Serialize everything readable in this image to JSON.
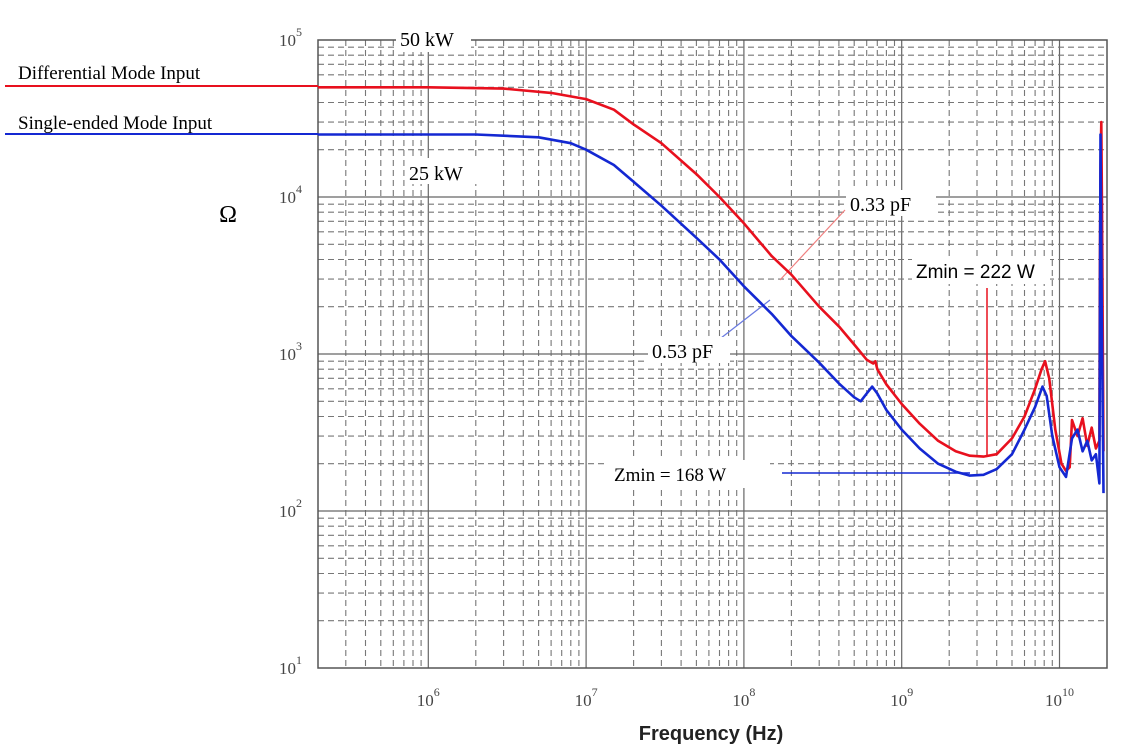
{
  "chart_data": {
    "type": "line",
    "x_scale": "log",
    "y_scale": "log",
    "xlim": [
      200000,
      20000000000
    ],
    "ylim": [
      10,
      100000
    ],
    "xlabel": "Frequency (Hz)",
    "ylabel": "Ω",
    "x_ticks": [
      {
        "value": 1000000,
        "base": "10",
        "exp": "6"
      },
      {
        "value": 10000000,
        "base": "10",
        "exp": "7"
      },
      {
        "value": 100000000,
        "base": "10",
        "exp": "8"
      },
      {
        "value": 1000000000,
        "base": "10",
        "exp": "9"
      },
      {
        "value": 10000000000,
        "base": "10",
        "exp": "10"
      }
    ],
    "y_ticks": [
      {
        "value": 10,
        "base": "10",
        "exp": "1"
      },
      {
        "value": 100,
        "base": "10",
        "exp": "2"
      },
      {
        "value": 1000,
        "base": "10",
        "exp": "3"
      },
      {
        "value": 10000,
        "base": "10",
        "exp": "4"
      },
      {
        "value": 100000,
        "base": "10",
        "exp": "5"
      }
    ],
    "grid": true,
    "series": [
      {
        "name": "Differential Mode Input",
        "color": "#e8101e",
        "points": [
          [
            200000,
            50000
          ],
          [
            1000000,
            50000
          ],
          [
            3000000,
            49000
          ],
          [
            6000000,
            46000
          ],
          [
            10000000,
            42000
          ],
          [
            15000000,
            36000
          ],
          [
            20000000,
            29000
          ],
          [
            30000000,
            22000
          ],
          [
            50000000,
            14000
          ],
          [
            70000000,
            10000
          ],
          [
            100000000,
            6800
          ],
          [
            150000000,
            4200
          ],
          [
            200000000,
            3200
          ],
          [
            300000000,
            2000
          ],
          [
            400000000,
            1500
          ],
          [
            500000000,
            1150
          ],
          [
            600000000,
            920
          ],
          [
            660000000,
            870
          ],
          [
            680000000,
            900
          ],
          [
            700000000,
            800
          ],
          [
            800000000,
            640
          ],
          [
            1000000000,
            480
          ],
          [
            1300000000,
            360
          ],
          [
            1700000000,
            280
          ],
          [
            2200000000,
            240
          ],
          [
            2700000000,
            225
          ],
          [
            3300000000,
            222
          ],
          [
            4000000000,
            230
          ],
          [
            5000000000,
            290
          ],
          [
            6000000000,
            400
          ],
          [
            7000000000,
            600
          ],
          [
            7700000000,
            800
          ],
          [
            8100000000,
            900
          ],
          [
            8600000000,
            700
          ],
          [
            9400000000,
            330
          ],
          [
            10300000000,
            200
          ],
          [
            11000000000,
            180
          ],
          [
            11600000000,
            190
          ],
          [
            12000000000,
            380
          ],
          [
            13000000000,
            300
          ],
          [
            14000000000,
            390
          ],
          [
            15000000000,
            260
          ],
          [
            16000000000,
            340
          ],
          [
            17000000000,
            250
          ],
          [
            17900000000,
            280
          ],
          [
            18000000000,
            3000
          ],
          [
            18200000000,
            15000
          ],
          [
            18400000000,
            30000
          ],
          [
            18600000000,
            8000
          ],
          [
            19000000000,
            240
          ]
        ]
      },
      {
        "name": "Single-ended Mode Input",
        "color": "#1428d2",
        "points": [
          [
            200000,
            25000
          ],
          [
            2000000,
            25000
          ],
          [
            5000000,
            24000
          ],
          [
            8000000,
            22000
          ],
          [
            10000000,
            20000
          ],
          [
            15000000,
            16000
          ],
          [
            20000000,
            12500
          ],
          [
            30000000,
            8800
          ],
          [
            50000000,
            5500
          ],
          [
            70000000,
            4000
          ],
          [
            100000000,
            2700
          ],
          [
            150000000,
            1800
          ],
          [
            200000000,
            1300
          ],
          [
            300000000,
            880
          ],
          [
            400000000,
            650
          ],
          [
            500000000,
            530
          ],
          [
            550000000,
            500
          ],
          [
            600000000,
            560
          ],
          [
            650000000,
            620
          ],
          [
            700000000,
            560
          ],
          [
            800000000,
            440
          ],
          [
            1000000000,
            330
          ],
          [
            1300000000,
            250
          ],
          [
            1700000000,
            200
          ],
          [
            2200000000,
            178
          ],
          [
            2700000000,
            168
          ],
          [
            3300000000,
            170
          ],
          [
            4000000000,
            185
          ],
          [
            5000000000,
            230
          ],
          [
            6000000000,
            330
          ],
          [
            7000000000,
            460
          ],
          [
            7800000000,
            620
          ],
          [
            8300000000,
            540
          ],
          [
            9000000000,
            300
          ],
          [
            10000000000,
            190
          ],
          [
            11000000000,
            165
          ],
          [
            12000000000,
            290
          ],
          [
            13000000000,
            330
          ],
          [
            14000000000,
            240
          ],
          [
            15000000000,
            280
          ],
          [
            16000000000,
            210
          ],
          [
            17000000000,
            230
          ],
          [
            17900000000,
            150
          ],
          [
            18200000000,
            25000
          ],
          [
            18500000000,
            2000
          ],
          [
            19000000000,
            130
          ]
        ]
      }
    ],
    "legend": [
      {
        "label": "Differential Mode Input",
        "color": "#e8101e"
      },
      {
        "label": "Single-ended Mode Input",
        "color": "#1428d2"
      }
    ],
    "annotations": [
      {
        "text": "50 kW",
        "color": "#000000"
      },
      {
        "text": "25 kW",
        "color": "#000000"
      },
      {
        "text": "0.33 pF",
        "color": "#e8101e"
      },
      {
        "text": "0.53 pF",
        "color": "#1428d2"
      },
      {
        "text": "Zmin = 222 W",
        "color": "#e8101e",
        "x": 3300000000,
        "y": 222
      },
      {
        "text": "Zmin = 168 W",
        "color": "#1428d2",
        "x": 2800000000,
        "y": 168
      }
    ]
  }
}
